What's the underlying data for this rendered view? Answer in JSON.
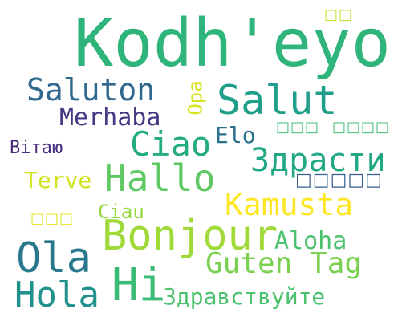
{
  "words": [
    {
      "text": "Kodh'eyo",
      "color": "#2fb47c"
    },
    {
      "text": "Bonjour",
      "color": "#a0da39"
    },
    {
      "text": "Hallo",
      "color": "#5ec962"
    },
    {
      "text": "Salut",
      "color": "#1f9e89"
    },
    {
      "text": "Hi",
      "color": "#3bbb75"
    },
    {
      "text": "Ola",
      "color": "#2a788e"
    },
    {
      "text": "Hola",
      "color": "#21918c"
    },
    {
      "text": "Ciao",
      "color": "#25ab82"
    },
    {
      "text": "Saluton",
      "color": "#31688e"
    },
    {
      "text": "Merhaba",
      "color": "#443983"
    },
    {
      "text": "Здрасти",
      "color": "#22a884"
    },
    {
      "text": "Kamusta",
      "color": "#fde725"
    },
    {
      "text": "Guten Tag",
      "color": "#7ad151"
    },
    {
      "text": "Aloha",
      "color": "#4ac16d"
    },
    {
      "text": "Здравствуйте",
      "color": "#4ac16d"
    },
    {
      "text": "Terve",
      "color": "#d2e21b"
    },
    {
      "text": "Elo",
      "color": "#2c728e"
    },
    {
      "text": "Ciau",
      "color": "#95d840"
    },
    {
      "text": "Вітаю",
      "color": "#472d7b"
    },
    {
      "text": "Opa",
      "color": "#d8e219"
    },
    {
      "text": "□□",
      "color": "#c2df23"
    },
    {
      "text": "□□□",
      "color": "#3dbc74"
    },
    {
      "text": "□□□□",
      "color": "#3fbc73"
    },
    {
      "text": "□□□□□",
      "color": "#355f8d"
    },
    {
      "text": "□□□",
      "color": "#e2e418"
    }
  ]
}
